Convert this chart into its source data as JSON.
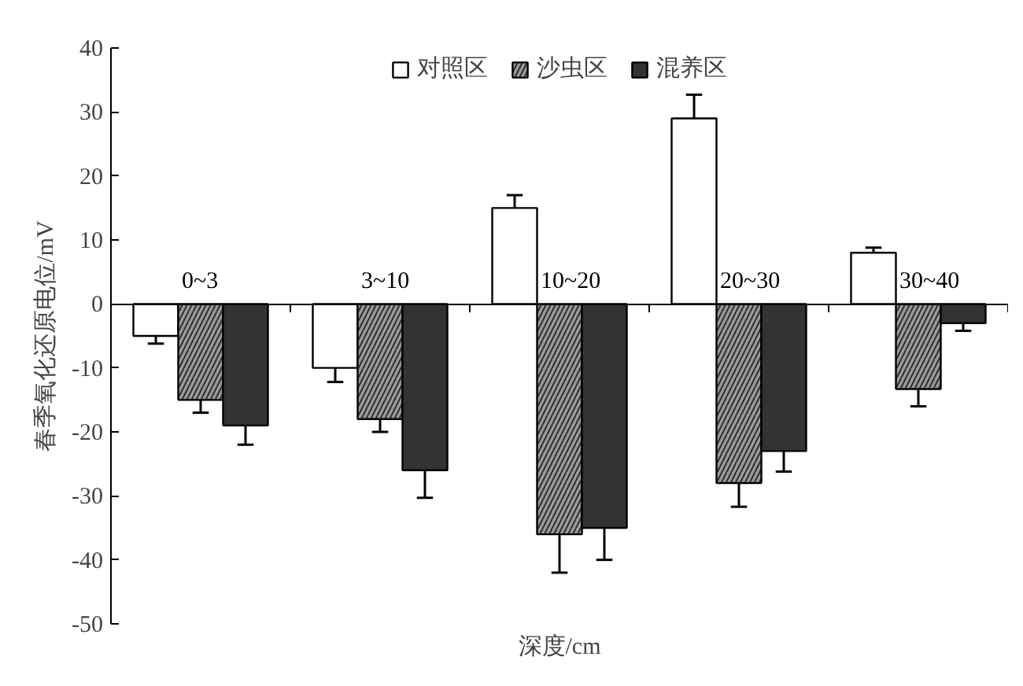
{
  "chart_data": {
    "type": "bar",
    "xlabel": "深度/cm",
    "ylabel": "春季氧化还原电位/mV",
    "categories": [
      "0~3",
      "3~10",
      "10~20",
      "20~30",
      "30~40"
    ],
    "series": [
      {
        "name": "对照区",
        "color": "#ffffff",
        "values": [
          -5,
          -10,
          15,
          29,
          8
        ],
        "errors": [
          1.2,
          2.2,
          2,
          3.7,
          0.8
        ]
      },
      {
        "name": "沙虫区",
        "color": "#9a9a9a",
        "values": [
          -15,
          -18,
          -36,
          -28,
          -13.3
        ],
        "errors": [
          2,
          2,
          6,
          3.7,
          2.7
        ]
      },
      {
        "name": "混养区",
        "color": "#333333",
        "values": [
          -19,
          -26,
          -35,
          -23,
          -3
        ],
        "errors": [
          3,
          4.3,
          5,
          3.2,
          1.2
        ]
      }
    ],
    "ylim": [
      -50,
      40
    ],
    "yticks": [
      -50,
      -40,
      -30,
      -20,
      -10,
      0,
      10,
      20,
      30,
      40
    ],
    "grid": false,
    "legend": "top"
  }
}
